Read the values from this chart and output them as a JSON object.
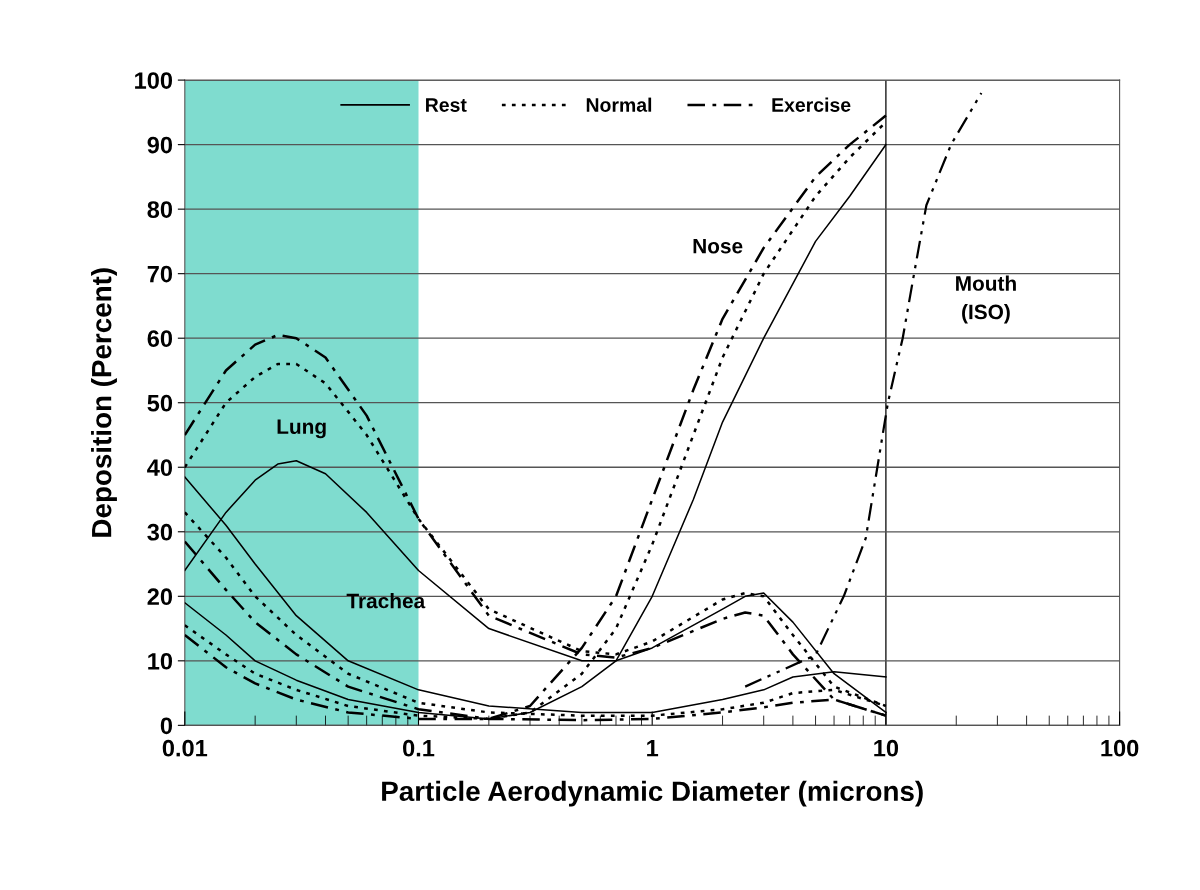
{
  "chart_data": {
    "type": "line",
    "xlabel": "Particle Aerodynamic Diameter (microns)",
    "ylabel": "Deposition (Percent)",
    "log": "x",
    "xlim": [
      0.01,
      100
    ],
    "xticks": [
      0.01,
      0.1,
      1,
      10,
      100
    ],
    "ylim": [
      0,
      100
    ],
    "yticks": [
      0,
      10,
      20,
      30,
      40,
      50,
      60,
      70,
      80,
      90,
      100
    ],
    "grid": "y",
    "legend": "top",
    "series": [
      {
        "name": "Rest",
        "color": "#000000",
        "line_style": "solid",
        "x": [
          0.01,
          0.015,
          0.02,
          0.025,
          0.03,
          0.04,
          0.06,
          0.1,
          0.2,
          0.5,
          0.7,
          1,
          2,
          2.5,
          3,
          4,
          6,
          10
        ],
        "values": [
          24,
          33,
          38,
          40.5,
          41,
          39,
          33,
          24,
          15,
          10,
          10,
          12,
          18,
          20,
          20.5,
          16,
          8,
          2
        ]
      },
      {
        "name": "Normal",
        "color": "#000000",
        "line_style": "dotted",
        "x": [
          0.01,
          0.015,
          0.02,
          0.025,
          0.03,
          0.04,
          0.06,
          0.1,
          0.2,
          0.5,
          0.7,
          1,
          2,
          2.5,
          3,
          4,
          6,
          10
        ],
        "values": [
          40,
          50,
          54,
          56,
          56,
          53,
          45,
          32,
          18,
          11.5,
          11,
          13,
          19.5,
          20.5,
          20,
          14,
          6,
          3
        ]
      },
      {
        "name": "Exercise",
        "color": "#000000",
        "line_style": "dashdot",
        "x": [
          0.01,
          0.015,
          0.02,
          0.025,
          0.03,
          0.04,
          0.06,
          0.1,
          0.2,
          0.5,
          0.7,
          1,
          2,
          2.5,
          3,
          4,
          6,
          10
        ],
        "values": [
          45,
          55,
          59,
          60.5,
          60,
          57,
          48,
          32,
          17,
          11,
          10.5,
          12,
          16.5,
          17.5,
          17,
          11,
          4,
          1.5
        ]
      },
      {
        "color": "#000000",
        "line_style": "solid",
        "x": [
          0.01,
          0.015,
          0.02,
          0.03,
          0.05,
          0.1,
          0.2,
          0.5,
          1,
          2,
          3,
          4,
          6,
          10
        ],
        "values": [
          38.5,
          31,
          25,
          17,
          10,
          5.5,
          3,
          2,
          2,
          4,
          5.5,
          7.5,
          8.3,
          7.5
        ]
      },
      {
        "color": "#000000",
        "line_style": "dotted",
        "x": [
          0.01,
          0.015,
          0.02,
          0.03,
          0.05,
          0.1,
          0.2,
          0.5,
          1,
          2,
          3,
          4,
          6,
          10
        ],
        "values": [
          33,
          26,
          20,
          14,
          8,
          3.5,
          2,
          1.5,
          1.5,
          2.5,
          3.5,
          5,
          5.5,
          3
        ]
      },
      {
        "color": "#000000",
        "line_style": "dashdot",
        "x": [
          0.01,
          0.015,
          0.02,
          0.03,
          0.05,
          0.1,
          0.2,
          0.5,
          1,
          2,
          3,
          4,
          6,
          10
        ],
        "values": [
          28.5,
          21,
          16,
          11,
          6,
          2.5,
          1,
          0.8,
          1,
          2,
          2.8,
          3.5,
          4,
          1.5
        ]
      },
      {
        "color": "#000000",
        "line_style": "solid",
        "x": [
          0.01,
          0.015,
          0.02,
          0.03,
          0.05,
          0.1,
          0.2,
          0.3,
          0.5,
          0.7,
          1,
          1.5,
          2,
          3,
          5,
          7,
          10
        ],
        "values": [
          19,
          14,
          10,
          7,
          4,
          2,
          1,
          2,
          6,
          10,
          20,
          35,
          47,
          60,
          75,
          82,
          90
        ]
      },
      {
        "color": "#000000",
        "line_style": "dotted",
        "x": [
          0.01,
          0.015,
          0.02,
          0.03,
          0.05,
          0.1,
          0.2,
          0.3,
          0.5,
          0.7,
          1,
          1.5,
          2,
          3,
          5,
          7,
          10
        ],
        "values": [
          15.5,
          11,
          8,
          5.5,
          3,
          1.5,
          1,
          2,
          8,
          15,
          28,
          45,
          57,
          70,
          82,
          88,
          93.5
        ]
      },
      {
        "color": "#000000",
        "line_style": "dashdot",
        "x": [
          0.01,
          0.015,
          0.02,
          0.03,
          0.05,
          0.1,
          0.2,
          0.3,
          0.5,
          0.7,
          1,
          1.5,
          2,
          3,
          5,
          7,
          10
        ],
        "values": [
          14,
          9,
          6.5,
          4,
          2,
          1,
          1,
          3,
          12,
          20,
          35,
          52,
          63,
          74,
          85,
          90,
          94.5
        ]
      },
      {
        "color": "#000000",
        "line_style": "dashdotdot",
        "x": [
          2.5,
          5,
          6.6,
          8.2,
          10.2,
          11.8,
          13.2,
          14.9,
          19,
          25.6
        ],
        "values": [
          6,
          10.9,
          20,
          29,
          50,
          60,
          70,
          80.6,
          90,
          98
        ]
      }
    ],
    "ref_lines": [
      {
        "axis": "x",
        "value": 10,
        "color": "#000000"
      }
    ],
    "bands": [
      {
        "axis": "x",
        "from": 0.01,
        "to": 0.1,
        "color": "#7fdccf"
      }
    ],
    "annotations": [
      "Lung",
      "Trachea",
      "Nose",
      "Mouth\n(ISO)"
    ]
  }
}
